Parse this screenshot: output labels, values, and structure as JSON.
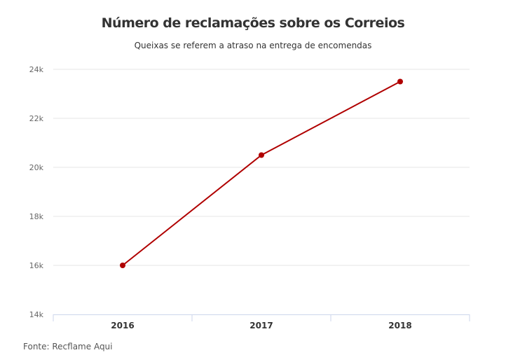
{
  "chart_data": {
    "type": "line",
    "title": "Número de reclamações sobre os Correios",
    "subtitle": "Queixas se referem a atraso na entrega de encomendas",
    "categories": [
      "2016",
      "2017",
      "2018"
    ],
    "values": [
      16000,
      20500,
      23500
    ],
    "ylim": [
      14000,
      24000
    ],
    "yticks": [
      14000,
      16000,
      18000,
      20000,
      22000,
      24000
    ],
    "ytick_labels": [
      "14k",
      "16k",
      "18k",
      "20k",
      "22k",
      "24k"
    ],
    "grid": true,
    "line_color": "#b00000",
    "source": "Fonte: Recflame Aqui"
  }
}
